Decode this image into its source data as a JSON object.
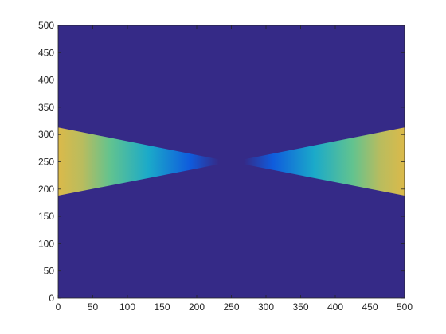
{
  "chart_data": {
    "type": "heatmap",
    "title": "",
    "xlabel": "",
    "ylabel": "",
    "xlim": [
      0,
      500
    ],
    "ylim": [
      0,
      500
    ],
    "grid": false,
    "colormap": "parula",
    "background_color": "#352A87",
    "x_ticks": [
      0,
      50,
      100,
      150,
      200,
      250,
      300,
      350,
      400,
      450,
      500
    ],
    "y_ticks": [
      0,
      50,
      100,
      150,
      200,
      250,
      300,
      350,
      400,
      450,
      500
    ],
    "x_tick_labels": [
      "0",
      "50",
      "100",
      "150",
      "200",
      "250",
      "300",
      "350",
      "400",
      "450",
      "500"
    ],
    "y_tick_labels": [
      "0",
      "50",
      "100",
      "150",
      "200",
      "250",
      "300",
      "350",
      "400",
      "450",
      "500"
    ],
    "regions": [
      {
        "shape": "wedge",
        "side": "left",
        "apex": [
          250,
          250
        ],
        "edge_x": 0,
        "edge_y_range": [
          188,
          313
        ],
        "visible_x_range": [
          0,
          232
        ]
      },
      {
        "shape": "wedge",
        "side": "right",
        "apex": [
          250,
          250
        ],
        "edge_x": 500,
        "edge_y_range": [
          188,
          313
        ],
        "visible_x_range": [
          268,
          500
        ]
      }
    ],
    "color_stops": [
      {
        "distance": 18,
        "color": "#352A87"
      },
      {
        "distance": 60,
        "color": "#0F5CDD"
      },
      {
        "distance": 120,
        "color": "#1BAAC9"
      },
      {
        "distance": 175,
        "color": "#62C38F"
      },
      {
        "distance": 215,
        "color": "#B9BC5E"
      },
      {
        "distance": 250,
        "color": "#DBBA4A"
      }
    ]
  }
}
